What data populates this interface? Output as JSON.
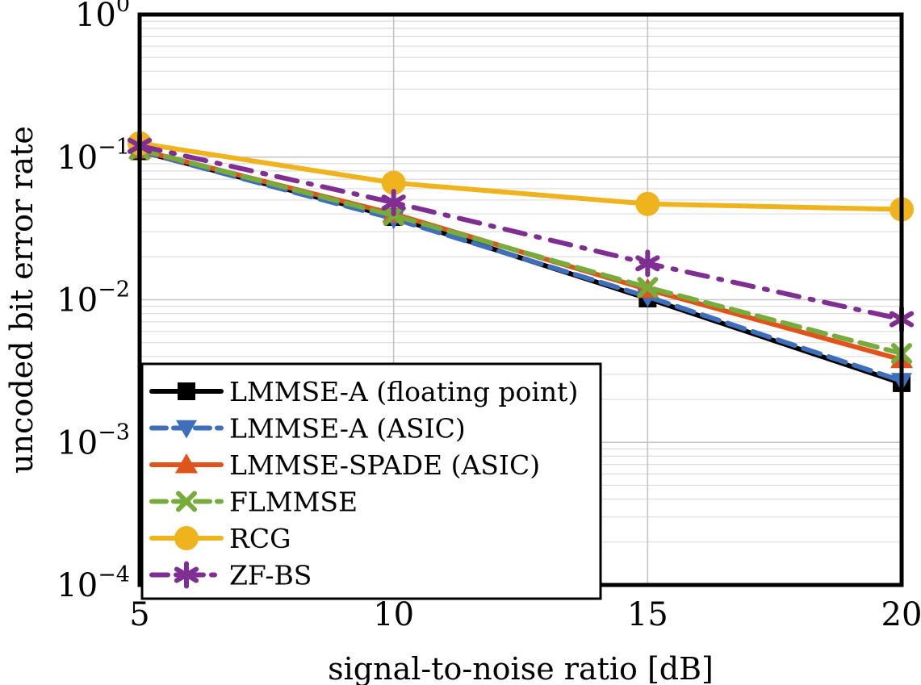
{
  "chart_data": {
    "type": "line",
    "xlabel": "signal-to-noise ratio [dB]",
    "ylabel": "uncoded bit error rate",
    "xlim": [
      5,
      20
    ],
    "ylim": [
      0.0001,
      1
    ],
    "yscale": "log",
    "grid": true,
    "legend_position": "bottom-left",
    "x_ticks": [
      "5",
      "10",
      "15",
      "20"
    ],
    "y_ticks": [
      {
        "base": "10",
        "exp": "0"
      },
      {
        "base": "10",
        "exp": "−1"
      },
      {
        "base": "10",
        "exp": "−2"
      },
      {
        "base": "10",
        "exp": "−3"
      },
      {
        "base": "10",
        "exp": "−4"
      }
    ],
    "x": [
      5,
      10,
      15,
      20
    ],
    "series": [
      {
        "name": "LMMSE-A (floating point)",
        "values": [
          0.11,
          0.038,
          0.0102,
          0.0026
        ],
        "color": "#000000",
        "marker": "square",
        "dash": "solid"
      },
      {
        "name": "LMMSE-A (ASIC)",
        "values": [
          0.11,
          0.037,
          0.0105,
          0.0027
        ],
        "color": "#3f6fba",
        "marker": "triangle-down",
        "dash": "dashed"
      },
      {
        "name": "LMMSE-SPADE (ASIC)",
        "values": [
          0.112,
          0.04,
          0.0118,
          0.0038
        ],
        "color": "#e0541c",
        "marker": "triangle-up",
        "dash": "solid"
      },
      {
        "name": "FLMMSE",
        "values": [
          0.113,
          0.039,
          0.0122,
          0.0042
        ],
        "color": "#77ab3b",
        "marker": "x",
        "dash": "dashed"
      },
      {
        "name": "RCG",
        "values": [
          0.125,
          0.066,
          0.047,
          0.043
        ],
        "color": "#efb31d",
        "marker": "circle",
        "dash": "solid"
      },
      {
        "name": "ZF-BS",
        "values": [
          0.12,
          0.048,
          0.018,
          0.0073
        ],
        "color": "#7f2e91",
        "marker": "asterisk",
        "dash": "dashdot"
      }
    ]
  }
}
